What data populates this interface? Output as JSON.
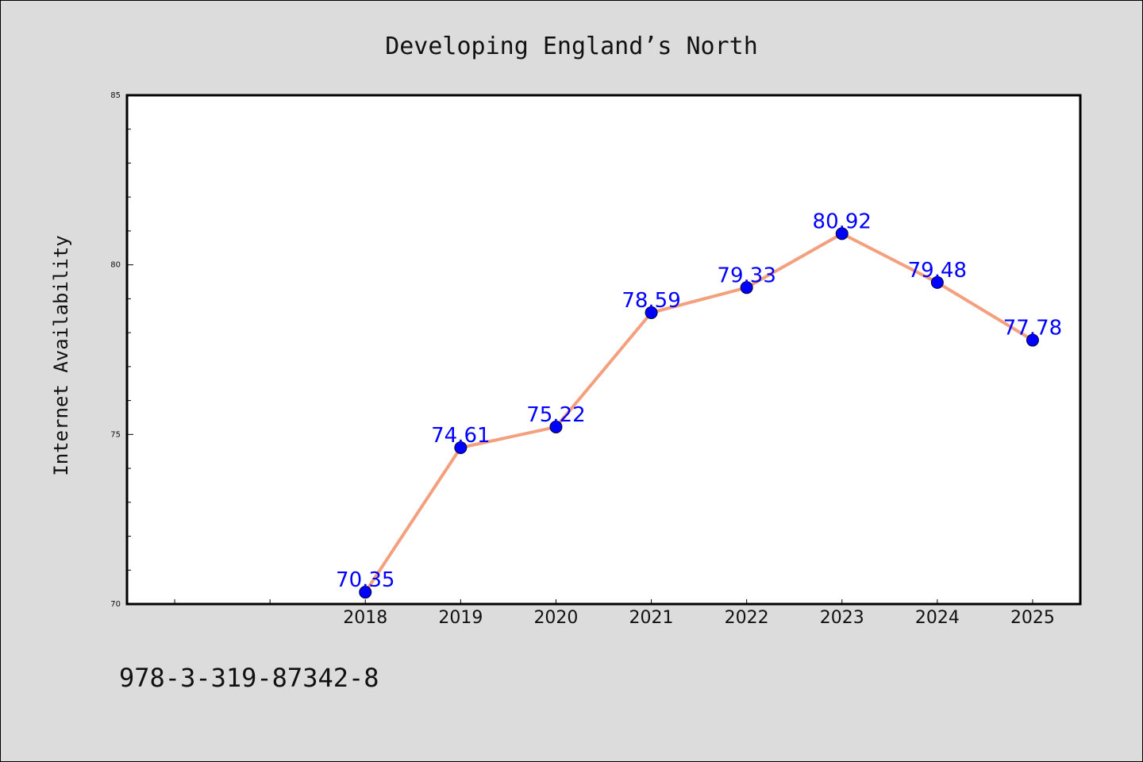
{
  "chart_data": {
    "type": "line",
    "title": "Developing England’s North",
    "xlabel": "",
    "ylabel": "Internet Availability",
    "categories": [
      "2018",
      "2019",
      "2020",
      "2021",
      "2022",
      "2023",
      "2024",
      "2025"
    ],
    "values": [
      70.35,
      74.61,
      75.22,
      78.59,
      79.33,
      80.92,
      79.48,
      77.78
    ],
    "data_labels": [
      "70.35",
      "74.61",
      "75.22",
      "78.59",
      "79.33",
      "80.92",
      "79.48",
      "77.78"
    ],
    "ylim": [
      70,
      85
    ],
    "yticks": [
      "70",
      "75",
      "80",
      "85"
    ],
    "xrange": [
      2015.5,
      2025.5
    ],
    "grid": false,
    "legend": "none",
    "line_color": "#f4a07e",
    "marker_color": "#0000ff",
    "label_color": "#0000ff"
  },
  "footer": {
    "isbn": "978-3-319-87342-8"
  }
}
